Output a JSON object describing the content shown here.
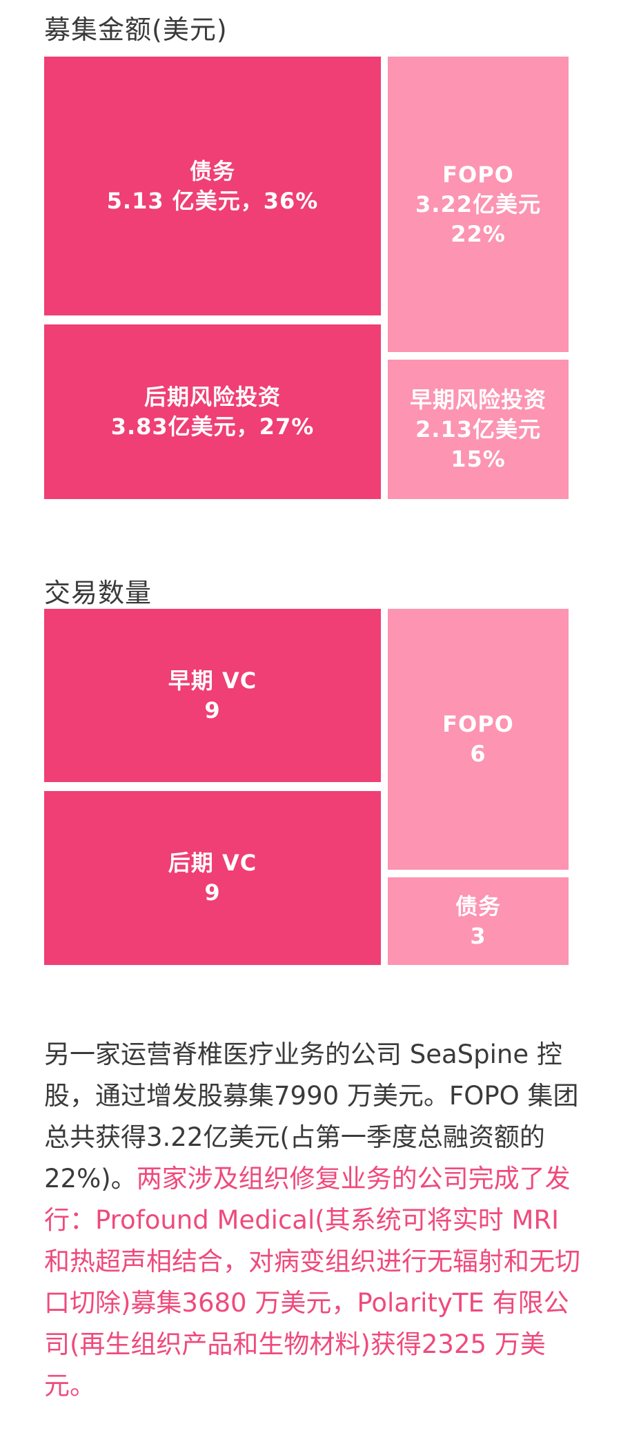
{
  "section1": {
    "title": "募集金额(美元)"
  },
  "section2": {
    "title": "交易数量"
  },
  "chart_data": [
    {
      "type": "treemap",
      "title": "募集金额(美元)",
      "items": [
        {
          "label": "债务",
          "value_text": "5.13 亿美元，36%",
          "value": 5.13,
          "share": 36,
          "color": "#ef3f74"
        },
        {
          "label": "后期风险投资",
          "value_text": "3.83亿美元，27%",
          "value": 3.83,
          "share": 27,
          "color": "#ef3f74"
        },
        {
          "label": "FOPO",
          "value_text": "3.22亿美元",
          "share_text": "22%",
          "value": 3.22,
          "share": 22,
          "color": "#fc94b2"
        },
        {
          "label": "早期风险投资",
          "value_text": "2.13亿美元",
          "share_text": "15%",
          "value": 2.13,
          "share": 15,
          "color": "#fc94b2"
        }
      ]
    },
    {
      "type": "treemap",
      "title": "交易数量",
      "items": [
        {
          "label": "早期 VC",
          "value_text": "9",
          "value": 9,
          "color": "#ef3f74"
        },
        {
          "label": "后期 VC",
          "value_text": "9",
          "value": 9,
          "color": "#ef3f74"
        },
        {
          "label": "FOPO",
          "value_text": "6",
          "value": 6,
          "color": "#fc94b2"
        },
        {
          "label": "债务",
          "value_text": "3",
          "value": 3,
          "color": "#fc94b2"
        }
      ]
    }
  ],
  "paragraph": {
    "normal": "另一家运营脊椎医疗业务的公司 SeaSpine 控股，通过增发股募集7990 万美元。FOPO 集团总共获得3.22亿美元(占第一季度总融资额的22%)。",
    "highlight": "两家涉及组织修复业务的公司完成了发行：Profound Medical(其系统可将实时 MRI 和热超声相结合，对病变组织进行无辐射和无切口切除)募集3680 万美元，PolarityTE 有限公司(再生组织产品和生物材料)获得2325 万美元。"
  }
}
